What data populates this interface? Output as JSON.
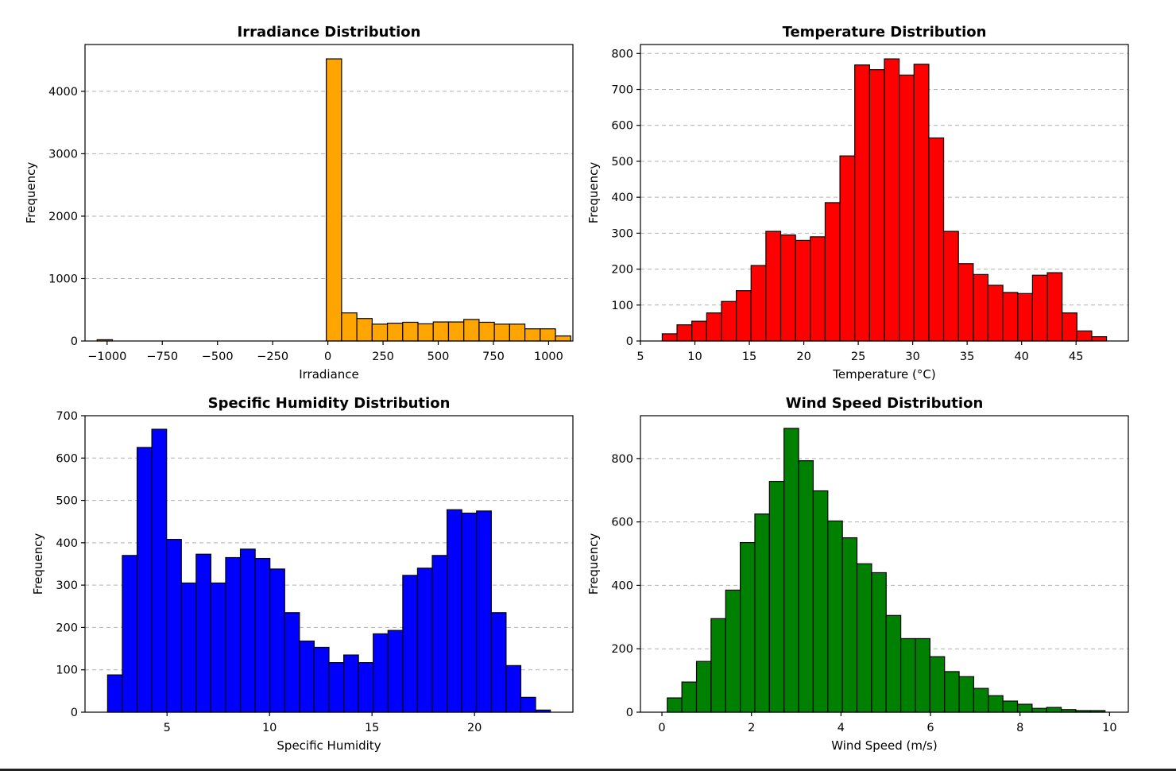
{
  "chart_data": [
    {
      "type": "bar",
      "title": "Irradiance Distribution",
      "xlabel": "Irradiance",
      "ylabel": "Frequency",
      "color": "#ffa500",
      "xlim": [
        -1100,
        1110
      ],
      "ylim": [
        0,
        4750
      ],
      "xticks": [
        -1000,
        -750,
        -500,
        -250,
        0,
        250,
        500,
        750,
        1000
      ],
      "xtick_labels": [
        "−1000",
        "−750",
        "−500",
        "−250",
        "0",
        "250",
        "500",
        "750",
        "1000"
      ],
      "yticks": [
        0,
        1000,
        2000,
        3000,
        4000
      ],
      "ytick_labels": [
        "0",
        "1000",
        "2000",
        "3000",
        "4000"
      ],
      "grid": "y-dashed",
      "bin_start": -1045,
      "bin_width": 69.2,
      "values": [
        20,
        0,
        0,
        0,
        0,
        0,
        0,
        0,
        0,
        0,
        0,
        0,
        0,
        0,
        0,
        4520,
        450,
        360,
        270,
        285,
        300,
        275,
        305,
        305,
        345,
        300,
        270,
        270,
        195,
        195,
        80
      ]
    },
    {
      "type": "bar",
      "title": "Temperature Distribution",
      "xlabel": "Temperature (°C)",
      "ylabel": "Frequency",
      "color": "#ff0000",
      "xlim": [
        5,
        49.8
      ],
      "ylim": [
        0,
        825
      ],
      "xticks": [
        5,
        10,
        15,
        20,
        25,
        30,
        35,
        40,
        45
      ],
      "xtick_labels": [
        "5",
        "10",
        "15",
        "20",
        "25",
        "30",
        "35",
        "40",
        "45"
      ],
      "yticks": [
        0,
        100,
        200,
        300,
        400,
        500,
        600,
        700,
        800
      ],
      "ytick_labels": [
        "0",
        "100",
        "200",
        "300",
        "400",
        "500",
        "600",
        "700",
        "800"
      ],
      "grid": "y-dashed",
      "bin_start": 7.0,
      "bin_width": 1.36,
      "values": [
        20,
        45,
        55,
        78,
        110,
        140,
        210,
        305,
        295,
        280,
        290,
        385,
        515,
        768,
        755,
        785,
        740,
        770,
        565,
        305,
        215,
        185,
        155,
        135,
        132,
        183,
        190,
        78,
        28,
        12
      ]
    },
    {
      "type": "bar",
      "title": "Specific Humidity Distribution",
      "xlabel": "Specific Humidity",
      "ylabel": "Frequency",
      "color": "#0000ff",
      "xlim": [
        1.0,
        24.8
      ],
      "ylim": [
        0,
        700
      ],
      "xticks": [
        5,
        10,
        15,
        20
      ],
      "xtick_labels": [
        "5",
        "10",
        "15",
        "20"
      ],
      "yticks": [
        0,
        100,
        200,
        300,
        400,
        500,
        600,
        700
      ],
      "ytick_labels": [
        "0",
        "100",
        "200",
        "300",
        "400",
        "500",
        "600",
        "700"
      ],
      "grid": "y-dashed",
      "bin_start": 2.1,
      "bin_width": 0.72,
      "values": [
        88,
        370,
        625,
        668,
        408,
        305,
        373,
        305,
        365,
        385,
        363,
        338,
        235,
        168,
        153,
        117,
        135,
        117,
        185,
        193,
        323,
        340,
        370,
        478,
        470,
        475,
        235,
        110,
        35,
        5
      ]
    },
    {
      "type": "bar",
      "title": "Wind Speed Distribution",
      "xlabel": "Wind Speed (m/s)",
      "ylabel": "Frequency",
      "color": "#008000",
      "xlim": [
        -0.48,
        10.42
      ],
      "ylim": [
        0,
        935
      ],
      "xticks": [
        0,
        2,
        4,
        6,
        8,
        10
      ],
      "xtick_labels": [
        "0",
        "2",
        "4",
        "6",
        "8",
        "10"
      ],
      "yticks": [
        0,
        200,
        400,
        600,
        800
      ],
      "ytick_labels": [
        "0",
        "200",
        "400",
        "600",
        "800"
      ],
      "grid": "y-dashed",
      "bin_start": 0.12,
      "bin_width": 0.326,
      "values": [
        45,
        95,
        160,
        295,
        385,
        535,
        625,
        728,
        895,
        793,
        698,
        603,
        550,
        468,
        440,
        305,
        232,
        232,
        175,
        128,
        112,
        75,
        52,
        35,
        25,
        12,
        15,
        8,
        5,
        5
      ]
    }
  ]
}
